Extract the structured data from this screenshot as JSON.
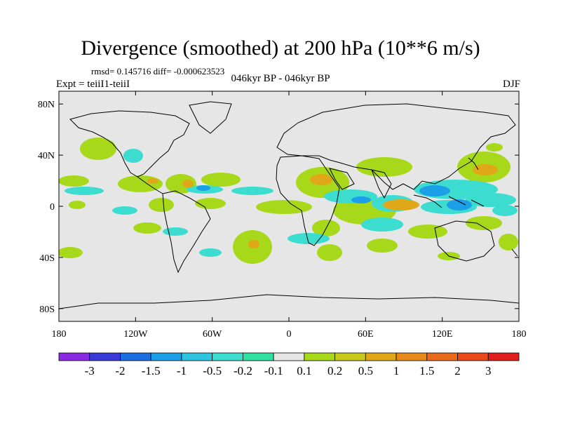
{
  "title": "Divergence (smoothed) at 200 hPa (10**6 m/s)",
  "stats": "rmsd= 0.145716 diff= -0.000623523",
  "subtitle_center": "046kyr BP - 046kyr BP",
  "subtitle_left": "Expt = teiiI1-teiiI",
  "subtitle_right": "DJF",
  "map": {
    "projection": "cylindrical-equidistant",
    "lon_range": [
      -180,
      180
    ],
    "lat_range": [
      -90,
      90
    ],
    "background_color": "#e6e6e6",
    "x_tick_labels": [
      "180",
      "120W",
      "60W",
      "0",
      "60E",
      "120E",
      "180"
    ],
    "y_tick_labels": [
      "80N",
      "40N",
      "0",
      "40S",
      "80S"
    ]
  },
  "colorbar": {
    "labels": [
      "-3",
      "-2",
      "-1.5",
      "-1",
      "-0.5",
      "-0.2",
      "-0.1",
      "0.1",
      "0.2",
      "0.5",
      "1",
      "1.5",
      "2",
      "3"
    ],
    "colors": [
      "#8a2be2",
      "#3a3ad8",
      "#1a6ee0",
      "#1ba0e8",
      "#2fc4e0",
      "#3ddcd0",
      "#30e0a0",
      "#e6e6e6",
      "#a8d81a",
      "#c8c81a",
      "#e0a818",
      "#e88a1a",
      "#e86a1a",
      "#e8481a",
      "#e01e1e"
    ]
  }
}
